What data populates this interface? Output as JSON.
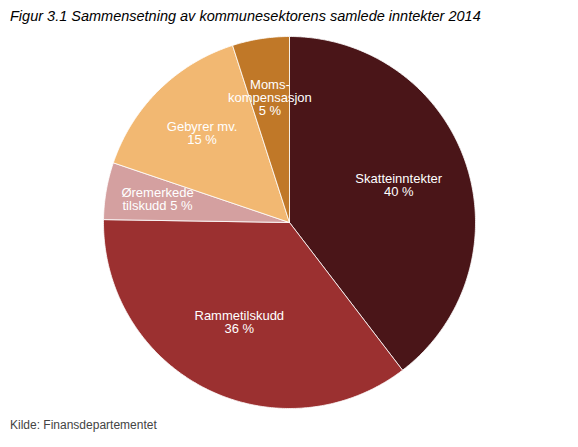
{
  "chart_data": {
    "type": "pie",
    "title": "Figur 3.1 Sammensetning av kommunesektorens samlede inntekter 2014",
    "caption": "Kilde: Finansdepartementet",
    "categories": [
      "Skatteinntekter\n40 %",
      "Rammetilskudd\n36 %",
      "Øremerkede\ntilskudd 5 %",
      "Gebyrer mv.\n15 %",
      "Moms-\nkompensasjon\n5 %"
    ],
    "values": [
      40,
      36,
      5,
      15,
      5
    ],
    "colors": [
      "#4a1518",
      "#9b3030",
      "#d4a0a0",
      "#f2b872",
      "#c07828"
    ]
  }
}
